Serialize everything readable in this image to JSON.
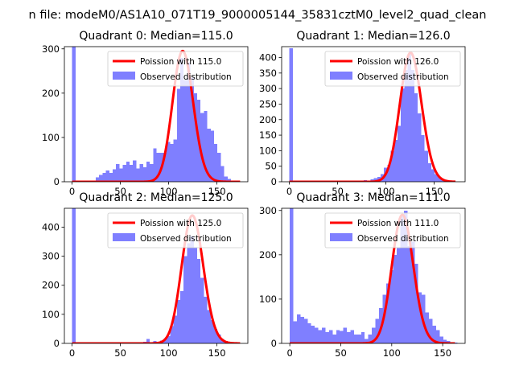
{
  "figure": {
    "suptitle": "n file: modeM0/AS1A10_071T19_9000005144_35831cztM0_level2_quad_clean"
  },
  "colors": {
    "observed": "#7f7fff",
    "poisson": "#ff0000",
    "axis": "#000000"
  },
  "chart_data": [
    {
      "type": "bar",
      "title": "Quadrant 0: Median=115.0",
      "median": 115.0,
      "xlim": [
        -8,
        182
      ],
      "ylim": [
        0,
        305
      ],
      "xticks": [
        0,
        50,
        100,
        150
      ],
      "yticks": [
        0,
        100,
        200,
        300
      ],
      "bin_width": 3.5,
      "legend": {
        "location": "upper right",
        "entries": [
          "Poission with 115.0",
          "Observed distribution"
        ]
      },
      "observed": {
        "name": "Observed distribution",
        "bin_starts": [
          0,
          3.5,
          7,
          10.5,
          14,
          17.5,
          21,
          24.5,
          28,
          31.5,
          35,
          38.5,
          42,
          45.5,
          49,
          52.5,
          56,
          59.5,
          63,
          66.5,
          70,
          73.5,
          77,
          80.5,
          84,
          87.5,
          91,
          94.5,
          98,
          101.5,
          105,
          108.5,
          112,
          115.5,
          119,
          122.5,
          126,
          129.5,
          133,
          136.5,
          140,
          143.5,
          147,
          150.5,
          154,
          157.5,
          161,
          164.5
        ],
        "values": [
          310,
          0,
          0,
          0,
          0,
          0,
          0,
          10,
          15,
          20,
          25,
          20,
          28,
          40,
          30,
          38,
          45,
          38,
          48,
          30,
          40,
          33,
          45,
          40,
          75,
          65,
          65,
          65,
          90,
          85,
          95,
          210,
          280,
          230,
          270,
          235,
          200,
          185,
          155,
          160,
          120,
          115,
          85,
          65,
          35,
          12,
          6,
          3
        ]
      },
      "poisson": {
        "name": "Poission with 115.0",
        "mean": 115.0,
        "peak": 295,
        "x_range": [
          0,
          174
        ]
      }
    },
    {
      "type": "bar",
      "title": "Quadrant 1: Median=126.0",
      "median": 126.0,
      "xlim": [
        -8,
        182
      ],
      "ylim": [
        0,
        435
      ],
      "xticks": [
        0,
        50,
        100,
        150
      ],
      "yticks": [
        0,
        50,
        100,
        150,
        200,
        250,
        300,
        350,
        400
      ],
      "bin_width": 3.5,
      "legend": {
        "location": "upper right",
        "entries": [
          "Poission with 126.0",
          "Observed distribution"
        ]
      },
      "observed": {
        "name": "Observed distribution",
        "bin_starts": [
          0,
          70,
          77,
          84,
          87.5,
          91,
          94.5,
          98,
          101.5,
          105,
          108.5,
          112,
          115.5,
          119,
          122.5,
          126,
          129.5,
          133,
          136.5,
          140,
          143.5,
          147,
          150.5,
          154,
          157.5,
          161,
          164.5
        ],
        "values": [
          430,
          3,
          5,
          8,
          12,
          15,
          25,
          45,
          55,
          100,
          135,
          180,
          300,
          360,
          410,
          360,
          285,
          220,
          150,
          100,
          60,
          40,
          25,
          15,
          8,
          5,
          3
        ]
      },
      "poisson": {
        "name": "Poission with 126.0",
        "mean": 126.0,
        "peak": 415,
        "x_range": [
          0,
          172
        ]
      }
    },
    {
      "type": "bar",
      "title": "Quadrant 2: Median=125.0",
      "median": 125.0,
      "xlim": [
        -8,
        182
      ],
      "ylim": [
        0,
        465
      ],
      "xticks": [
        0,
        50,
        100,
        150
      ],
      "yticks": [
        0,
        100,
        200,
        300,
        400
      ],
      "bin_width": 3.5,
      "legend": {
        "location": "upper right",
        "entries": [
          "Poission with 125.0",
          "Observed distribution"
        ]
      },
      "observed": {
        "name": "Observed distribution",
        "bin_starts": [
          0,
          73.5,
          77,
          84,
          91,
          94.5,
          98,
          101.5,
          105,
          108.5,
          112,
          115.5,
          119,
          122.5,
          126,
          129.5,
          133,
          136.5,
          140,
          143.5,
          147,
          150.5,
          154,
          157.5,
          161,
          164.5
        ],
        "values": [
          470,
          5,
          15,
          8,
          10,
          15,
          25,
          60,
          95,
          150,
          180,
          300,
          345,
          370,
          330,
          290,
          225,
          160,
          115,
          80,
          50,
          30,
          15,
          8,
          5,
          3
        ]
      },
      "poisson": {
        "name": "Poission with 125.0",
        "mean": 125.0,
        "peak": 440,
        "x_range": [
          0,
          174
        ]
      }
    },
    {
      "type": "bar",
      "title": "Quadrant 3: Median=111.0",
      "median": 111.0,
      "xlim": [
        -8,
        172
      ],
      "ylim": [
        0,
        305
      ],
      "xticks": [
        0,
        50,
        100,
        150
      ],
      "yticks": [
        0,
        100,
        200,
        300
      ],
      "bin_width": 3.5,
      "legend": {
        "location": "upper right",
        "entries": [
          "Poission with 111.0",
          "Observed distribution"
        ]
      },
      "observed": {
        "name": "Observed distribution",
        "bin_starts": [
          0,
          3.5,
          7,
          10.5,
          14,
          17.5,
          21,
          24.5,
          28,
          31.5,
          35,
          38.5,
          42,
          45.5,
          49,
          52.5,
          56,
          59.5,
          63,
          66.5,
          70,
          73.5,
          77,
          80.5,
          84,
          87.5,
          91,
          94.5,
          98,
          101.5,
          105,
          108.5,
          112,
          115.5,
          119,
          122.5,
          126,
          129.5,
          133,
          136.5,
          140,
          143.5,
          147,
          150.5,
          154,
          157.5,
          161
        ],
        "values": [
          310,
          50,
          65,
          60,
          55,
          45,
          40,
          35,
          30,
          35,
          25,
          30,
          20,
          30,
          28,
          35,
          25,
          30,
          20,
          20,
          25,
          10,
          20,
          35,
          55,
          80,
          110,
          135,
          165,
          200,
          215,
          290,
          300,
          220,
          230,
          180,
          115,
          110,
          70,
          55,
          40,
          30,
          15,
          8,
          5,
          3,
          2
        ]
      },
      "poisson": {
        "name": "Poission with 111.0",
        "mean": 111.0,
        "peak": 290,
        "x_range": [
          0,
          162
        ]
      }
    }
  ]
}
